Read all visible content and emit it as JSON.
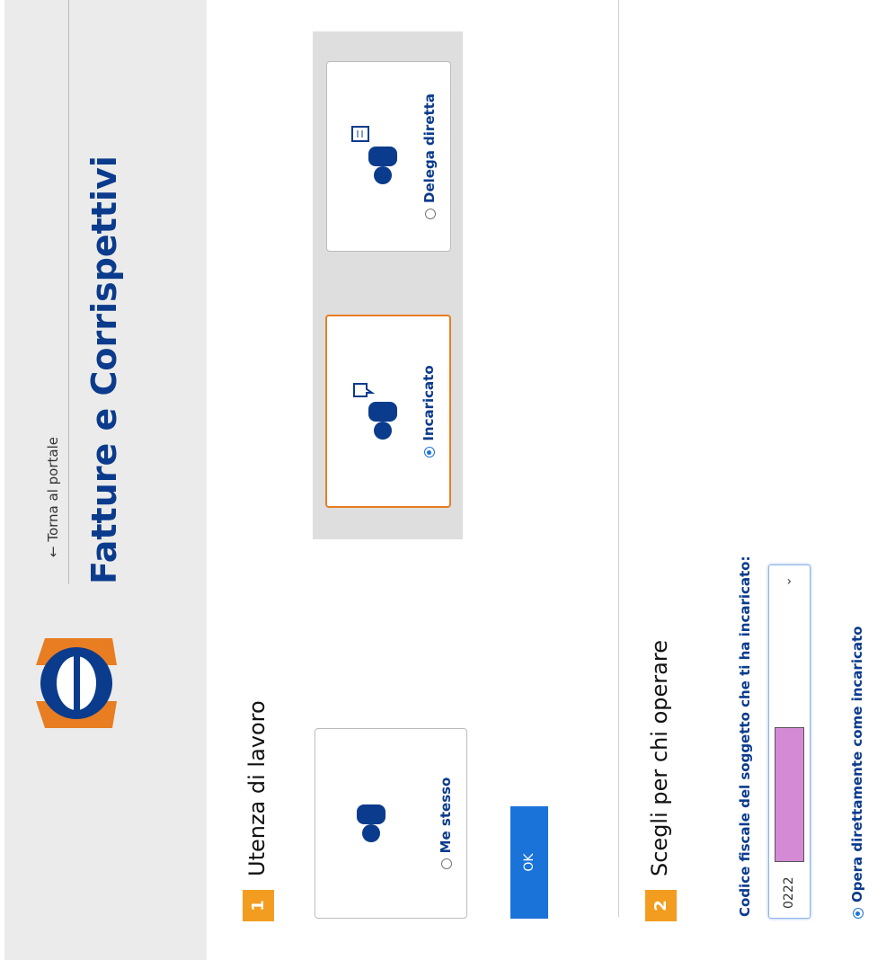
{
  "header": {
    "back_link": "← Torna al portale",
    "title": "Fatture e Corrispettivi"
  },
  "step1": {
    "number": "1",
    "title": "Utenza di lavoro",
    "options": [
      "Me stesso",
      "Incaricato",
      "Delega diretta"
    ],
    "button": "OK"
  },
  "step2": {
    "number": "2",
    "title": "Scegli per chi operare",
    "field_label": "Codice fiscale del soggetto che ti ha incaricato:",
    "field_value": "0222",
    "radio": "Opera direttamente come incaricato"
  }
}
